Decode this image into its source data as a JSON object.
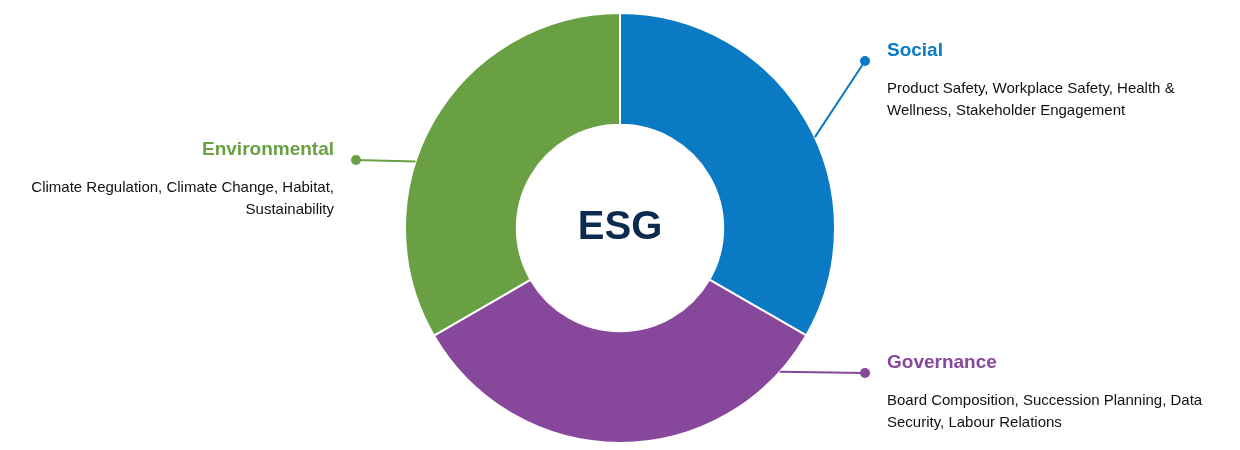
{
  "chart_data": {
    "type": "donut",
    "title": "ESG",
    "categories": [
      "Social",
      "Governance",
      "Environmental"
    ],
    "values": [
      33.33,
      33.33,
      33.34
    ],
    "colors": [
      "#0a7ac4",
      "#87479b",
      "#68a043"
    ],
    "legend": "right",
    "annotations": [
      "Product Safety, Workplace Safety, Health & Wellness, Stakeholder Engagement",
      "Board Composition, Succession Planning, Data Security, Labour Relations",
      "Climate Regulation, Climate Change, Habitat, Sustainability"
    ]
  }
}
